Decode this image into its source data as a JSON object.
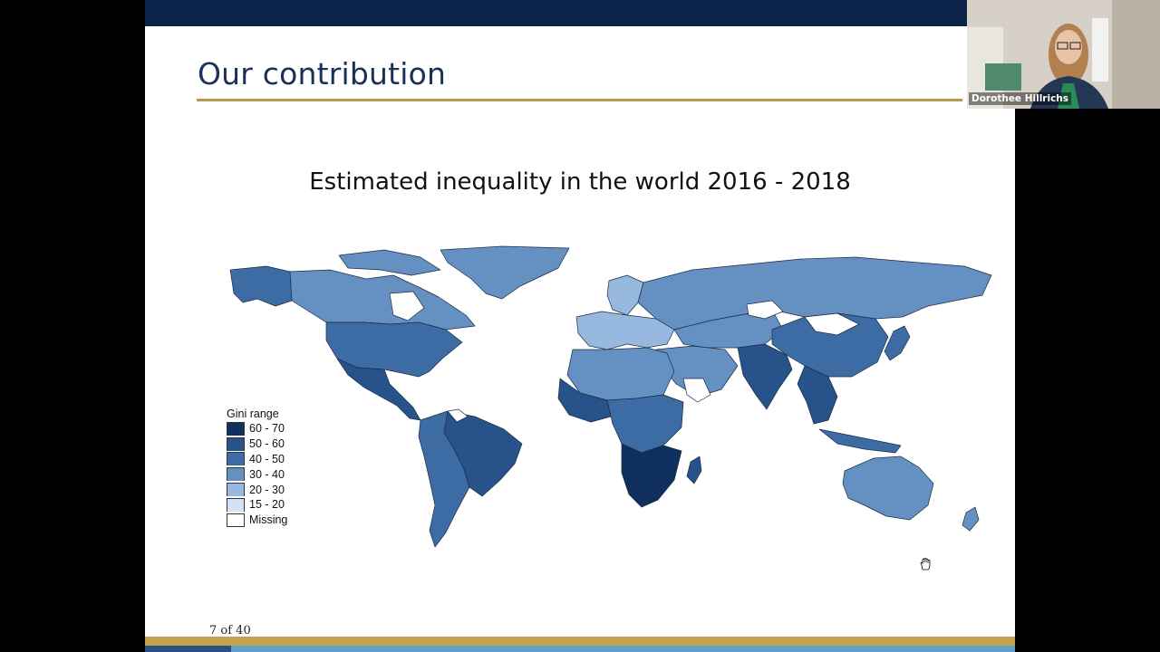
{
  "slide": {
    "title": "Our contribution",
    "map_title": "Estimated inequality in the world 2016 - 2018",
    "page_number": "7 of 40"
  },
  "legend": {
    "title": "Gini range",
    "items": [
      {
        "label": "60 - 70",
        "color": "#0f2f5e"
      },
      {
        "label": "50 - 60",
        "color": "#27528a"
      },
      {
        "label": "40 - 50",
        "color": "#3d6ca4"
      },
      {
        "label": "30 - 40",
        "color": "#6590c2"
      },
      {
        "label": "20 - 30",
        "color": "#98b9df"
      },
      {
        "label": "15 - 20",
        "color": "#d0e2f4"
      },
      {
        "label": "Missing",
        "color": "#ffffff"
      }
    ]
  },
  "webcam": {
    "participant_name": "Dorothee Hillrichs"
  },
  "colors": {
    "header": "#0b2348",
    "accent_gold": "#b59a4c",
    "title_text": "#1a2f5a"
  }
}
